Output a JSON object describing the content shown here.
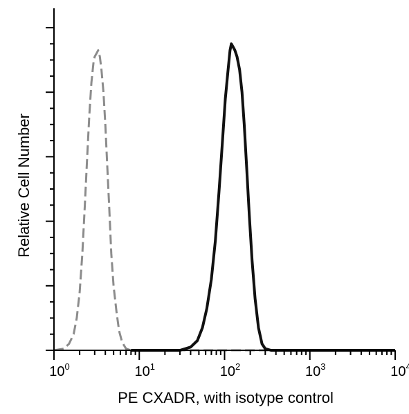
{
  "chart_data": {
    "type": "line",
    "title": "",
    "xlabel": "PE CXADR, with isotype control",
    "ylabel": "Relative Cell Number",
    "x_scale": "log",
    "xlim": [
      1,
      10000
    ],
    "ylim": [
      0,
      100
    ],
    "x_ticks": [
      {
        "value": 1,
        "base": "10",
        "exp": "0"
      },
      {
        "value": 10,
        "base": "10",
        "exp": "1"
      },
      {
        "value": 100,
        "base": "10",
        "exp": "2"
      },
      {
        "value": 1000,
        "base": "10",
        "exp": "3"
      },
      {
        "value": 10000,
        "base": "10",
        "exp": "4"
      }
    ],
    "y_major_ticks": [
      0,
      20,
      40,
      60,
      80,
      100
    ],
    "grid": false,
    "legend": "none",
    "series": [
      {
        "style": "dashed",
        "color": "#8c8c8c",
        "points": [
          [
            1.0,
            0
          ],
          [
            1.3,
            0.5
          ],
          [
            1.5,
            2
          ],
          [
            1.7,
            5
          ],
          [
            1.85,
            10
          ],
          [
            2.0,
            18
          ],
          [
            2.15,
            30
          ],
          [
            2.3,
            45
          ],
          [
            2.45,
            60
          ],
          [
            2.6,
            73
          ],
          [
            2.75,
            83
          ],
          [
            2.9,
            89
          ],
          [
            3.0,
            91
          ],
          [
            3.15,
            92
          ],
          [
            3.3,
            93
          ],
          [
            3.45,
            91
          ],
          [
            3.6,
            87
          ],
          [
            3.8,
            80
          ],
          [
            4.0,
            70
          ],
          [
            4.2,
            58
          ],
          [
            4.45,
            44
          ],
          [
            4.7,
            30
          ],
          [
            5.0,
            20
          ],
          [
            5.4,
            12
          ],
          [
            5.8,
            6
          ],
          [
            6.3,
            2.5
          ],
          [
            7.0,
            0.5
          ],
          [
            8.0,
            0
          ],
          [
            10000,
            0
          ]
        ]
      },
      {
        "style": "solid",
        "color": "#111111",
        "points": [
          [
            8.0,
            0
          ],
          [
            30,
            0
          ],
          [
            40,
            1
          ],
          [
            48,
            3
          ],
          [
            55,
            7
          ],
          [
            62,
            13
          ],
          [
            70,
            22
          ],
          [
            78,
            34
          ],
          [
            86,
            49
          ],
          [
            94,
            64
          ],
          [
            102,
            78
          ],
          [
            110,
            87
          ],
          [
            116,
            93
          ],
          [
            120,
            95
          ],
          [
            126,
            94
          ],
          [
            132,
            93
          ],
          [
            140,
            91
          ],
          [
            150,
            87
          ],
          [
            160,
            80
          ],
          [
            170,
            70
          ],
          [
            182,
            56
          ],
          [
            195,
            42
          ],
          [
            210,
            28
          ],
          [
            228,
            16
          ],
          [
            250,
            7
          ],
          [
            275,
            2
          ],
          [
            300,
            0.5
          ],
          [
            350,
            0
          ],
          [
            10000,
            0
          ]
        ]
      }
    ]
  }
}
